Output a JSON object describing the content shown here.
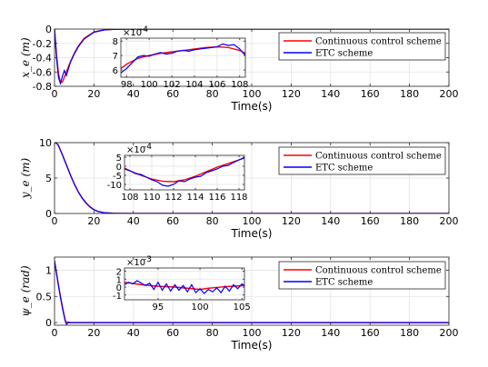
{
  "chart_data": [
    {
      "type": "line",
      "ylabel": "x_e (m)",
      "xlabel": "Time(s)",
      "xlim": [
        0,
        200
      ],
      "ylim": [
        -0.8,
        0
      ],
      "x_ticks": [
        "0",
        "20",
        "40",
        "60",
        "80",
        "100",
        "120",
        "140",
        "160",
        "180",
        "200"
      ],
      "y_ticks": [
        "-0.8",
        "-0.6",
        "-0.4",
        "-0.2",
        "0"
      ],
      "grid": true,
      "legend_position": "top-right",
      "series": [
        {
          "name": "Continuous control scheme",
          "color": "#ff0000",
          "x": [
            0,
            1,
            2,
            3,
            4,
            5,
            6,
            8,
            10,
            12,
            15,
            20,
            25,
            30,
            40,
            60,
            100,
            200
          ],
          "y": [
            0,
            -0.35,
            -0.62,
            -0.75,
            -0.74,
            -0.67,
            -0.6,
            -0.46,
            -0.34,
            -0.24,
            -0.13,
            -0.04,
            -0.012,
            -0.004,
            0,
            0,
            0,
            0
          ]
        },
        {
          "name": "ETC scheme",
          "color": "#0000ff",
          "x": [
            0,
            1,
            2,
            3,
            4,
            5,
            6,
            7,
            8,
            10,
            12,
            15,
            20,
            25,
            30,
            40,
            60,
            100,
            200
          ],
          "y": [
            0,
            -0.4,
            -0.68,
            -0.76,
            -0.66,
            -0.58,
            -0.65,
            -0.56,
            -0.47,
            -0.35,
            -0.25,
            -0.14,
            -0.045,
            -0.013,
            -0.004,
            0,
            0,
            0,
            0
          ]
        }
      ],
      "inset": {
        "xlim": [
          97.5,
          108.5
        ],
        "ylim": [
          5.5,
          8.2
        ],
        "exponent_label": "×10",
        "exponent": "-4",
        "x_ticks": [
          "98",
          "100",
          "102",
          "104",
          "106",
          "108"
        ],
        "y_ticks": [
          "6",
          "7",
          "8"
        ],
        "series": [
          {
            "name": "Continuous control scheme",
            "color": "#ff0000",
            "x": [
              97.5,
              98,
              99,
              100,
              101,
              102,
              103,
              104,
              105,
              106,
              107,
              108,
              108.5
            ],
            "y": [
              6.1,
              6.4,
              6.8,
              7.0,
              7.15,
              7.25,
              7.35,
              7.45,
              7.55,
              7.6,
              7.55,
              7.35,
              7.15
            ]
          },
          {
            "name": "ETC scheme",
            "color": "#0000ff",
            "x": [
              97.5,
              98,
              98.5,
              99,
              99.5,
              100,
              100.5,
              101,
              101.5,
              102,
              102.5,
              103,
              103.5,
              104,
              104.5,
              105,
              105.5,
              106,
              106.5,
              107,
              107.5,
              108,
              108.5
            ],
            "y": [
              5.8,
              6.1,
              6.5,
              6.9,
              7.0,
              6.95,
              7.1,
              7.2,
              7.1,
              7.15,
              7.3,
              7.35,
              7.3,
              7.4,
              7.45,
              7.5,
              7.55,
              7.6,
              7.8,
              7.7,
              7.75,
              7.45,
              7.0
            ]
          }
        ]
      }
    },
    {
      "type": "line",
      "ylabel": "y_e (m)",
      "xlabel": "Time(s)",
      "xlim": [
        0,
        200
      ],
      "ylim": [
        0,
        10
      ],
      "x_ticks": [
        "0",
        "20",
        "40",
        "60",
        "80",
        "100",
        "120",
        "140",
        "160",
        "180",
        "200"
      ],
      "y_ticks": [
        "0",
        "5",
        "10"
      ],
      "grid": true,
      "legend_position": "top-right",
      "series": [
        {
          "name": "Continuous control scheme",
          "color": "#ff0000",
          "x": [
            0,
            1,
            2,
            4,
            6,
            8,
            10,
            12,
            14,
            16,
            18,
            20,
            22,
            25,
            30,
            40,
            60,
            100,
            200
          ],
          "y": [
            10,
            9.95,
            9.6,
            8.3,
            6.9,
            5.5,
            4.2,
            3.1,
            2.2,
            1.5,
            0.95,
            0.55,
            0.3,
            0.12,
            0.03,
            0,
            0,
            0,
            0
          ]
        },
        {
          "name": "ETC scheme",
          "color": "#0000ff",
          "x": [
            0,
            1,
            2,
            4,
            6,
            8,
            10,
            12,
            14,
            16,
            18,
            20,
            22,
            25,
            30,
            40,
            60,
            100,
            200
          ],
          "y": [
            10,
            9.95,
            9.55,
            8.25,
            6.85,
            5.45,
            4.15,
            3.05,
            2.15,
            1.45,
            0.9,
            0.52,
            0.28,
            0.11,
            0.03,
            0,
            0,
            0,
            0
          ]
        }
      ],
      "inset": {
        "xlim": [
          107.5,
          118.5
        ],
        "ylim": [
          -13,
          6
        ],
        "exponent_label": "×10",
        "exponent": "-4",
        "x_ticks": [
          "108",
          "110",
          "112",
          "114",
          "116",
          "118"
        ],
        "y_ticks": [
          "-10",
          "-5",
          "0",
          "5"
        ],
        "series": [
          {
            "name": "Continuous control scheme",
            "color": "#ff0000",
            "x": [
              107.5,
              108,
              109,
              110,
              111,
              112,
              113,
              114,
              115,
              116,
              117,
              118,
              118.5
            ],
            "y": [
              -1,
              -2.5,
              -5,
              -7,
              -8.3,
              -8.5,
              -7.5,
              -5.5,
              -3,
              -0.5,
              1.5,
              3.5,
              4.5
            ]
          },
          {
            "name": "ETC scheme",
            "color": "#0000ff",
            "x": [
              107.5,
              108,
              108.5,
              109,
              109.5,
              110,
              110.5,
              111,
              111.5,
              112,
              112.5,
              113,
              113.5,
              114,
              114.5,
              115,
              115.5,
              116,
              116.5,
              117,
              117.5,
              118,
              118.5
            ],
            "y": [
              -1.5,
              -2.5,
              -4,
              -4.5,
              -6,
              -7.5,
              -8.5,
              -10.5,
              -11,
              -10,
              -8,
              -8.5,
              -7,
              -6,
              -5.5,
              -3.5,
              -2.5,
              -1.5,
              0,
              0.5,
              2,
              3.5,
              4.8
            ]
          }
        ]
      }
    },
    {
      "type": "line",
      "ylabel": "ψ_e (rad)",
      "xlabel": "Time(s)",
      "xlim": [
        0,
        200
      ],
      "ylim": [
        -0.05,
        1.25
      ],
      "x_ticks": [
        "0",
        "20",
        "40",
        "60",
        "80",
        "100",
        "120",
        "140",
        "160",
        "180",
        "200"
      ],
      "y_ticks": [
        "0",
        "0.5",
        "1"
      ],
      "grid": true,
      "legend_position": "top-right",
      "series": [
        {
          "name": "Continuous control scheme",
          "color": "#ff0000",
          "x": [
            0,
            1,
            2,
            3,
            4,
            5,
            5.5,
            6,
            7,
            10,
            20,
            50,
            100,
            200
          ],
          "y": [
            1.18,
            0.95,
            0.72,
            0.5,
            0.3,
            0.12,
            0.04,
            0.01,
            0,
            0,
            0,
            0,
            0,
            0
          ]
        },
        {
          "name": "ETC scheme",
          "color": "#0000ff",
          "x": [
            0,
            1,
            2,
            3,
            4,
            5,
            5.5,
            6,
            6.5,
            7,
            8,
            10,
            20,
            50,
            100,
            200
          ],
          "y": [
            1.18,
            0.94,
            0.7,
            0.48,
            0.28,
            0.1,
            0.02,
            -0.03,
            -0.02,
            0.01,
            0,
            0,
            0,
            0,
            0,
            0
          ]
        }
      ],
      "inset": {
        "xlim": [
          91,
          105.3
        ],
        "ylim": [
          -1.6,
          2.4
        ],
        "exponent_label": "×10",
        "exponent": "-3",
        "x_ticks": [
          "95",
          "100",
          "105"
        ],
        "y_ticks": [
          "-1",
          "0",
          "1",
          "2"
        ],
        "series": [
          {
            "name": "Continuous control scheme",
            "color": "#ff0000",
            "x": [
              91,
              93,
              95,
              97,
              99,
              100,
              101,
              103,
              105.3
            ],
            "y": [
              0.6,
              0.3,
              0.1,
              0,
              -0.2,
              -0.3,
              -0.15,
              0.05,
              0.2
            ]
          },
          {
            "name": "ETC scheme",
            "color": "#0000ff",
            "x": [
              91,
              91.5,
              92,
              92.5,
              93,
              93.5,
              94,
              94.5,
              95,
              95.5,
              96,
              96.5,
              97,
              97.5,
              98,
              98.5,
              99,
              99.5,
              100,
              100.5,
              101,
              101.5,
              102,
              102.5,
              103,
              103.5,
              104,
              104.5,
              105,
              105.3
            ],
            "y": [
              0.3,
              0.6,
              0.4,
              0.8,
              0.5,
              0.2,
              0.5,
              -0.3,
              0.6,
              -0.4,
              0.4,
              -0.5,
              0.3,
              -0.4,
              0.2,
              -0.6,
              0.3,
              -0.7,
              -0.2,
              -0.8,
              -0.3,
              -0.6,
              -0.1,
              -0.7,
              0.1,
              -0.5,
              0.3,
              -0.2,
              0.4,
              0.2
            ]
          }
        ]
      }
    }
  ]
}
